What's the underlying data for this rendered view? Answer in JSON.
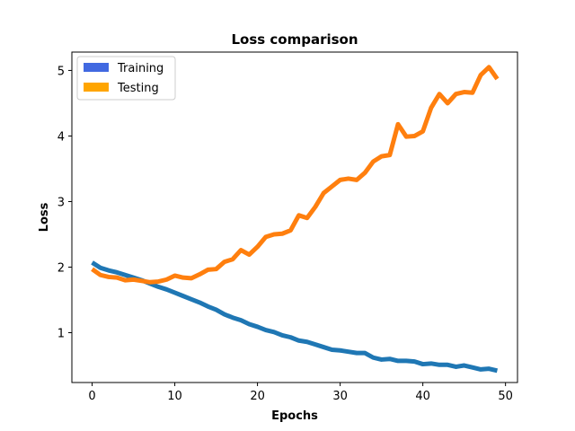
{
  "chart_data": {
    "type": "line",
    "title": "Loss comparison",
    "xlabel": "Epochs",
    "ylabel": "Loss",
    "xlim": [
      -2.45,
      51.45
    ],
    "ylim": [
      0.24,
      5.28
    ],
    "xticks": [
      0,
      10,
      20,
      30,
      40,
      50
    ],
    "yticks": [
      1,
      2,
      3,
      4,
      5
    ],
    "grid": false,
    "legend_position": "top-left",
    "series": [
      {
        "name": "Training",
        "line_color": "#1f77b4",
        "legend_color": "#4169e1",
        "x": [
          0,
          1,
          2,
          3,
          4,
          5,
          6,
          7,
          8,
          9,
          10,
          11,
          12,
          13,
          14,
          15,
          16,
          17,
          18,
          19,
          20,
          21,
          22,
          23,
          24,
          25,
          26,
          27,
          28,
          29,
          30,
          31,
          32,
          33,
          34,
          35,
          36,
          37,
          38,
          39,
          40,
          41,
          42,
          43,
          44,
          45,
          46,
          47,
          48,
          49
        ],
        "values": [
          2.07,
          1.99,
          1.95,
          1.92,
          1.88,
          1.84,
          1.8,
          1.75,
          1.7,
          1.66,
          1.61,
          1.56,
          1.51,
          1.46,
          1.4,
          1.35,
          1.28,
          1.23,
          1.19,
          1.13,
          1.09,
          1.04,
          1.01,
          0.96,
          0.93,
          0.88,
          0.86,
          0.82,
          0.78,
          0.74,
          0.73,
          0.71,
          0.69,
          0.69,
          0.62,
          0.59,
          0.6,
          0.57,
          0.57,
          0.56,
          0.52,
          0.53,
          0.51,
          0.51,
          0.48,
          0.5,
          0.47,
          0.44,
          0.45,
          0.42
        ]
      },
      {
        "name": "Testing",
        "line_color": "#ff7f0e",
        "legend_color": "#ffa500",
        "x": [
          0,
          1,
          2,
          3,
          4,
          5,
          6,
          7,
          8,
          9,
          10,
          11,
          12,
          13,
          14,
          15,
          16,
          17,
          18,
          19,
          20,
          21,
          22,
          23,
          24,
          25,
          26,
          27,
          28,
          29,
          30,
          31,
          32,
          33,
          34,
          35,
          36,
          37,
          38,
          39,
          40,
          41,
          42,
          43,
          44,
          45,
          46,
          47,
          48,
          49
        ],
        "values": [
          1.97,
          1.88,
          1.85,
          1.84,
          1.8,
          1.81,
          1.79,
          1.77,
          1.78,
          1.81,
          1.87,
          1.84,
          1.83,
          1.89,
          1.96,
          1.97,
          2.08,
          2.12,
          2.26,
          2.19,
          2.31,
          2.46,
          2.5,
          2.51,
          2.56,
          2.79,
          2.75,
          2.92,
          3.13,
          3.23,
          3.33,
          3.35,
          3.33,
          3.44,
          3.61,
          3.69,
          3.71,
          4.18,
          3.99,
          4.0,
          4.07,
          4.43,
          4.64,
          4.5,
          4.64,
          4.67,
          4.66,
          4.93,
          5.05,
          4.87
        ]
      }
    ]
  }
}
